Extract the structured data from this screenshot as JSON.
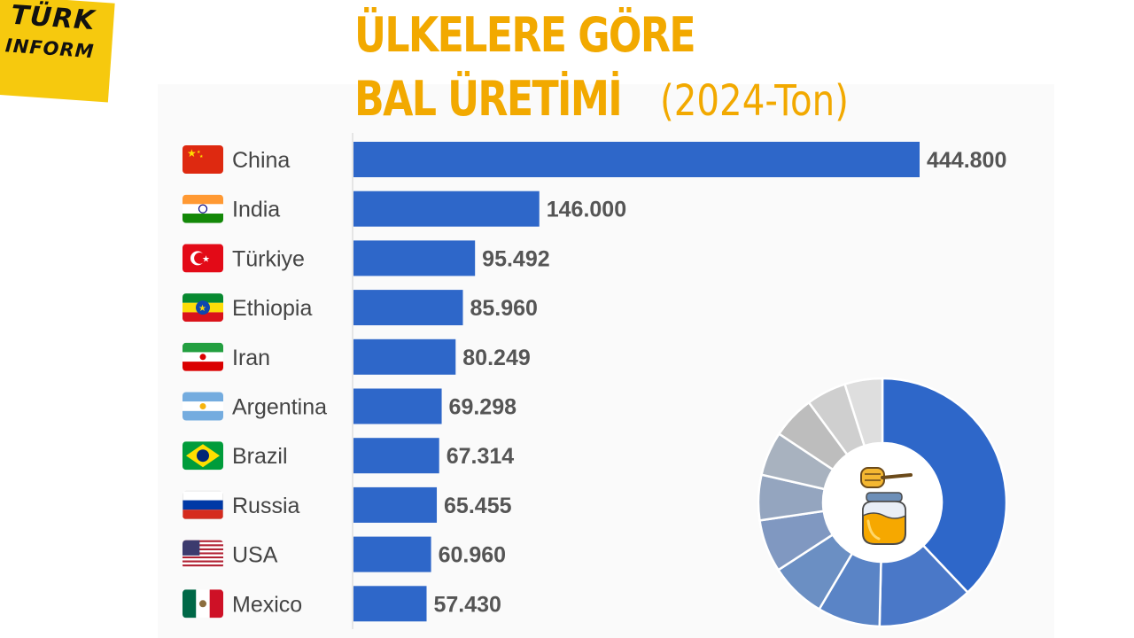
{
  "brand": {
    "line1": "TÜRK",
    "line2": "INFORM"
  },
  "header": {
    "title_line1": "ÜLKELERE GÖRE",
    "title_line2": "BAL ÜRETİMİ",
    "subtitle": "(2024-Ton)"
  },
  "colors": {
    "bar": "#2e67c9",
    "title": "#f2a900",
    "value_text": "#555555",
    "label_text": "#444444"
  },
  "chart_data": [
    {
      "type": "bar",
      "orientation": "horizontal",
      "title": "ÜLKELERE GÖRE BAL ÜRETİMİ (2024-Ton)",
      "categories": [
        "China",
        "India",
        "Türkiye",
        "Ethiopia",
        "Iran",
        "Argentina",
        "Brazil",
        "Russia",
        "USA",
        "Mexico"
      ],
      "flag_icons": [
        "china-flag-icon",
        "india-flag-icon",
        "turkiye-flag-icon",
        "ethiopia-flag-icon",
        "iran-flag-icon",
        "argentina-flag-icon",
        "brazil-flag-icon",
        "russia-flag-icon",
        "usa-flag-icon",
        "mexico-flag-icon"
      ],
      "values": [
        444800,
        146000,
        95492,
        85960,
        80249,
        69298,
        67314,
        65455,
        60960,
        57430
      ],
      "value_labels": [
        "444.800",
        "146.000",
        "95.492",
        "85.960",
        "80.249",
        "69.298",
        "67.314",
        "65.455",
        "60.960",
        "57.430"
      ],
      "xlim": [
        0,
        444800
      ]
    },
    {
      "type": "pie",
      "style": "donut",
      "values": [
        444800,
        146000,
        95492,
        85960,
        80249,
        69298,
        67314,
        65455,
        60960,
        57430
      ],
      "colors": [
        "#2e67c9",
        "#4a78c8",
        "#5a84c6",
        "#6b8fc3",
        "#8098c1",
        "#94a5bf",
        "#a8b2bf",
        "#bdbdbd",
        "#cfcfcf",
        "#dedede"
      ],
      "center_icon": "honey-pot-icon"
    }
  ]
}
